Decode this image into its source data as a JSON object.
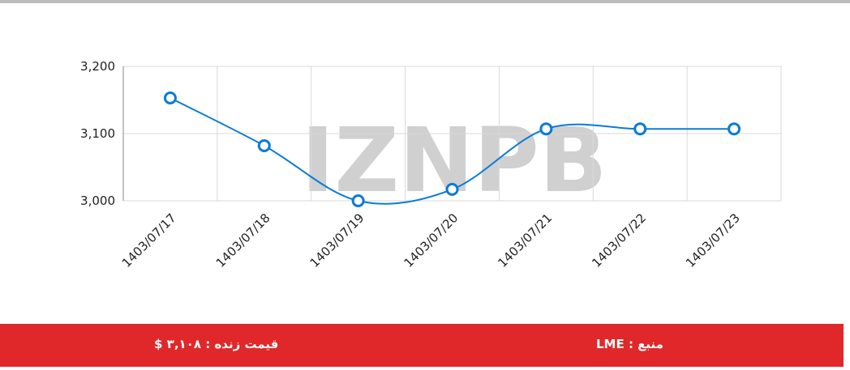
{
  "chart_data": {
    "type": "line",
    "categories": [
      "1403/07/17",
      "1403/07/18",
      "1403/07/19",
      "1403/07/20",
      "1403/07/21",
      "1403/07/22",
      "1403/07/23"
    ],
    "series": [
      {
        "color": "#0a7bd6",
        "values": [
          3153,
          3082,
          3000,
          3017,
          3107,
          3107,
          3107
        ]
      }
    ],
    "ylim": [
      3000,
      3200
    ],
    "yticks": [
      {
        "value": 3000,
        "label": "3,000"
      },
      {
        "value": 3100,
        "label": "3,100"
      },
      {
        "value": 3200,
        "label": "3,200"
      }
    ],
    "grid": true,
    "watermark": "IZNPB"
  },
  "footer": {
    "live_price": "قیمت زنده : ۳,۱۰۸ $",
    "source": "منبع : LME"
  }
}
